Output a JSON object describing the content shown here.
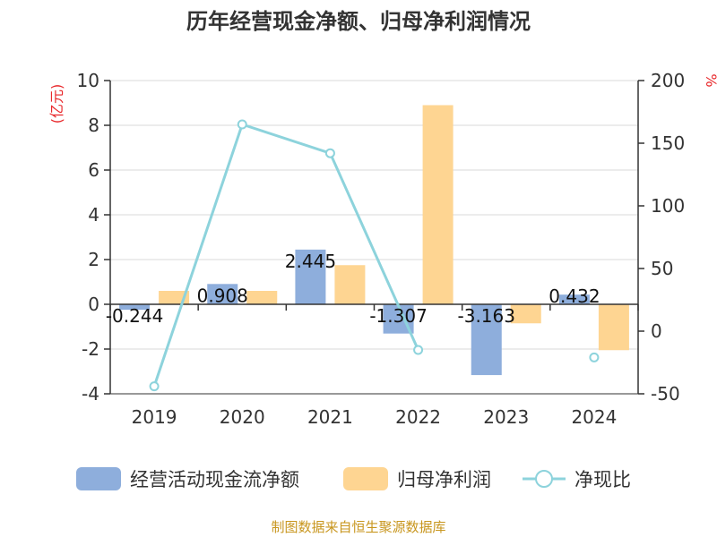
{
  "chart_data": {
    "type": "bar",
    "title": "历年经营现金净额、归母净利润情况",
    "categories": [
      "2019",
      "2020",
      "2021",
      "2022",
      "2023",
      "2024"
    ],
    "series": [
      {
        "name": "经营活动现金流净额",
        "kind": "bar",
        "axis": "left",
        "color": "#8eaedc",
        "values": [
          -0.244,
          0.908,
          2.445,
          -1.307,
          -3.163,
          0.432
        ],
        "labels": [
          "-0.244",
          "0.908",
          "2.445",
          "-1.307",
          "-3.163",
          "0.432"
        ]
      },
      {
        "name": "归母净利润",
        "kind": "bar",
        "axis": "left",
        "color": "#fed592",
        "values": [
          0.6,
          0.6,
          1.75,
          8.9,
          -0.85,
          -2.05
        ]
      },
      {
        "name": "净现比",
        "kind": "line",
        "axis": "right",
        "color": "#8dd3dc",
        "values": [
          -44,
          165,
          142,
          -15,
          null,
          -21
        ]
      }
    ],
    "y_left": {
      "label": "(亿元)",
      "lim": [
        -4,
        10
      ],
      "ticks": [
        "-4",
        "-2",
        "0",
        "2",
        "4",
        "6",
        "8",
        "10"
      ]
    },
    "y_right": {
      "label": "%",
      "lim": [
        -50,
        200
      ],
      "ticks": [
        "-50",
        "0",
        "50",
        "100",
        "150",
        "200"
      ]
    },
    "legend_position": "bottom",
    "grid": true
  },
  "source": "制图数据来自恒生聚源数据库"
}
